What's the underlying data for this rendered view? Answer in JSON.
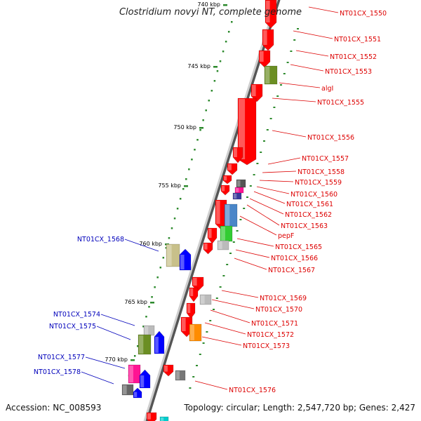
{
  "title": "Clostridium novyi NT, complete genome",
  "accession": "Accession: NC_008593",
  "summary": "Topology: circular; Length: 2,547,720 bp; Genes: 2,427",
  "colors": {
    "backbone": "#7f7f7f",
    "forward_label": "#dd0000",
    "reverse_label": "#0000bb",
    "tick_green": "#2d8a2d",
    "gene_red": "#ff0000",
    "gene_blue": "#0000ff"
  },
  "ticks": [
    {
      "label": "740 kbp"
    },
    {
      "label": "745 kbp"
    },
    {
      "label": "750 kbp"
    },
    {
      "label": "755 kbp"
    },
    {
      "label": "760 kbp"
    },
    {
      "label": "765 kbp"
    },
    {
      "label": "770 kbp"
    }
  ],
  "labels_right": [
    "NT01CX_1550",
    "NT01CX_1551",
    "NT01CX_1552",
    "NT01CX_1553",
    "algI",
    "NT01CX_1555",
    "NT01CX_1556",
    "NT01CX_1557",
    "NT01CX_1558",
    "NT01CX_1559",
    "NT01CX_1560",
    "NT01CX_1561",
    "NT01CX_1562",
    "NT01CX_1563",
    "pepF",
    "NT01CX_1565",
    "NT01CX_1566",
    "NT01CX_1567",
    "NT01CX_1569",
    "NT01CX_1570",
    "NT01CX_1571",
    "NT01CX_1572",
    "NT01CX_1573",
    "NT01CX_1576"
  ],
  "labels_left": [
    "NT01CX_1568",
    "NT01CX_1574",
    "NT01CX_1575",
    "NT01CX_1577",
    "NT01CX_1578"
  ]
}
